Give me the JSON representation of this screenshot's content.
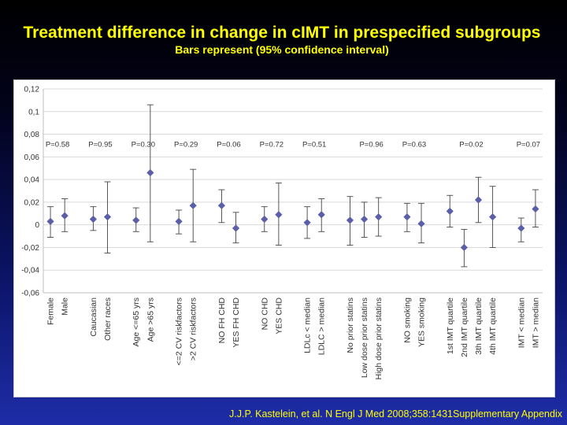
{
  "slide": {
    "title": "Treatment difference in change in cIMT in prespecified subgroups",
    "subtitle": "Bars represent (95% confidence interval)",
    "citation": "J.J.P. Kastelein, et al. N Engl J Med 2008;358:1431Supplementary Appendix"
  },
  "colors": {
    "title": "#ffff00",
    "marker": "#5b5fa8",
    "error_bar": "#444444",
    "grid": "#d9d9d9",
    "axis_text": "#333333",
    "background_top": "#000000",
    "background_bottom": "#1e2ca8"
  },
  "chart_data": {
    "type": "scatter",
    "subtype": "forest-plot-with-error-bars",
    "title": "",
    "xlabel": "",
    "ylabel": "",
    "ylim": [
      -0.06,
      0.12
    ],
    "yticks": [
      -0.06,
      -0.04,
      -0.02,
      0,
      0.02,
      0.04,
      0.06,
      0.08,
      0.1,
      0.12
    ],
    "ytick_labels": [
      "-0,06",
      "-0,04",
      "-0,02",
      "0",
      "0,02",
      "0,04",
      "0,06",
      "0,08",
      "0,1",
      "0,12"
    ],
    "grid": true,
    "legend": "none",
    "categories": [
      "Female",
      "Male",
      "",
      "Caucasian",
      "Other races",
      "",
      "Age <=65 yrs",
      "Age >65 yrs",
      "",
      "<=2 CV riskfactors",
      ">2 CV riskfactors",
      "",
      "NO  FH CHD",
      "YES  FH CHD",
      "",
      "NO CHD",
      "YES CHD",
      "",
      "LDLc < median",
      "LDLC > median",
      "",
      "No prior statins",
      "Low dose prior statins",
      "High dose prior statins",
      "",
      "NO smoking",
      "YES smoking",
      "",
      "1st IMT quartile",
      "2nd IMT quartile",
      "3th IMT quartile",
      "4th IMT quartile",
      "",
      "IMT < median",
      "IMT > median"
    ],
    "points": [
      {
        "label": "Female",
        "value": 0.003,
        "lower": -0.011,
        "upper": 0.016
      },
      {
        "label": "Male",
        "value": 0.008,
        "lower": -0.006,
        "upper": 0.023
      },
      {
        "label": "Caucasian",
        "value": 0.005,
        "lower": -0.005,
        "upper": 0.016
      },
      {
        "label": "Other races",
        "value": 0.007,
        "lower": -0.025,
        "upper": 0.038
      },
      {
        "label": "Age <=65 yrs",
        "value": 0.004,
        "lower": -0.006,
        "upper": 0.015
      },
      {
        "label": "Age >65 yrs",
        "value": 0.046,
        "lower": -0.015,
        "upper": 0.106
      },
      {
        "label": "<=2 CV riskfactors",
        "value": 0.003,
        "lower": -0.008,
        "upper": 0.013
      },
      {
        "label": ">2 CV riskfactors",
        "value": 0.017,
        "lower": -0.015,
        "upper": 0.049
      },
      {
        "label": "NO  FH CHD",
        "value": 0.017,
        "lower": 0.002,
        "upper": 0.031
      },
      {
        "label": "YES  FH CHD",
        "value": -0.003,
        "lower": -0.016,
        "upper": 0.011
      },
      {
        "label": "NO CHD",
        "value": 0.005,
        "lower": -0.006,
        "upper": 0.016
      },
      {
        "label": "YES CHD",
        "value": 0.009,
        "lower": -0.018,
        "upper": 0.037
      },
      {
        "label": "LDLc < median",
        "value": 0.002,
        "lower": -0.012,
        "upper": 0.016
      },
      {
        "label": "LDLC > median",
        "value": 0.009,
        "lower": -0.006,
        "upper": 0.023
      },
      {
        "label": "No prior statins",
        "value": 0.004,
        "lower": -0.018,
        "upper": 0.025
      },
      {
        "label": "Low dose prior statins",
        "value": 0.005,
        "lower": -0.011,
        "upper": 0.02
      },
      {
        "label": "High dose prior statins",
        "value": 0.007,
        "lower": -0.01,
        "upper": 0.024
      },
      {
        "label": "NO smoking",
        "value": 0.007,
        "lower": -0.006,
        "upper": 0.019
      },
      {
        "label": "YES smoking",
        "value": 0.001,
        "lower": -0.016,
        "upper": 0.019
      },
      {
        "label": "1st IMT quartile",
        "value": 0.012,
        "lower": -0.002,
        "upper": 0.026
      },
      {
        "label": "2nd IMT quartile",
        "value": -0.02,
        "lower": -0.037,
        "upper": -0.004
      },
      {
        "label": "3th IMT quartile",
        "value": 0.022,
        "lower": 0.002,
        "upper": 0.042
      },
      {
        "label": "4th IMT quartile",
        "value": 0.007,
        "lower": -0.02,
        "upper": 0.034
      },
      {
        "label": "IMT < median",
        "value": -0.003,
        "lower": -0.015,
        "upper": 0.006
      },
      {
        "label": "IMT > median",
        "value": 0.014,
        "lower": -0.002,
        "upper": 0.031
      }
    ],
    "annotations": [
      {
        "text": "P=0.58",
        "after_category": "Female"
      },
      {
        "text": "P=0.95",
        "after_category": "Caucasian"
      },
      {
        "text": "P=0.30",
        "after_category": "Age <=65 yrs"
      },
      {
        "text": "P=0.29",
        "after_category": "<=2 CV riskfactors"
      },
      {
        "text": "P=0.06",
        "after_category": "NO  FH CHD"
      },
      {
        "text": "P=0.72",
        "after_category": "NO CHD"
      },
      {
        "text": "P=0.51",
        "after_category": "LDLc < median"
      },
      {
        "text": "P=0.96",
        "after_category": "Low dose prior statins"
      },
      {
        "text": "P=0.63",
        "after_category": "NO smoking"
      },
      {
        "text": "P=0.02",
        "after_category": "2nd IMT quartile"
      },
      {
        "text": "P=0.07",
        "after_category": "IMT < median"
      }
    ],
    "annotation_y_value": 0.0715
  }
}
